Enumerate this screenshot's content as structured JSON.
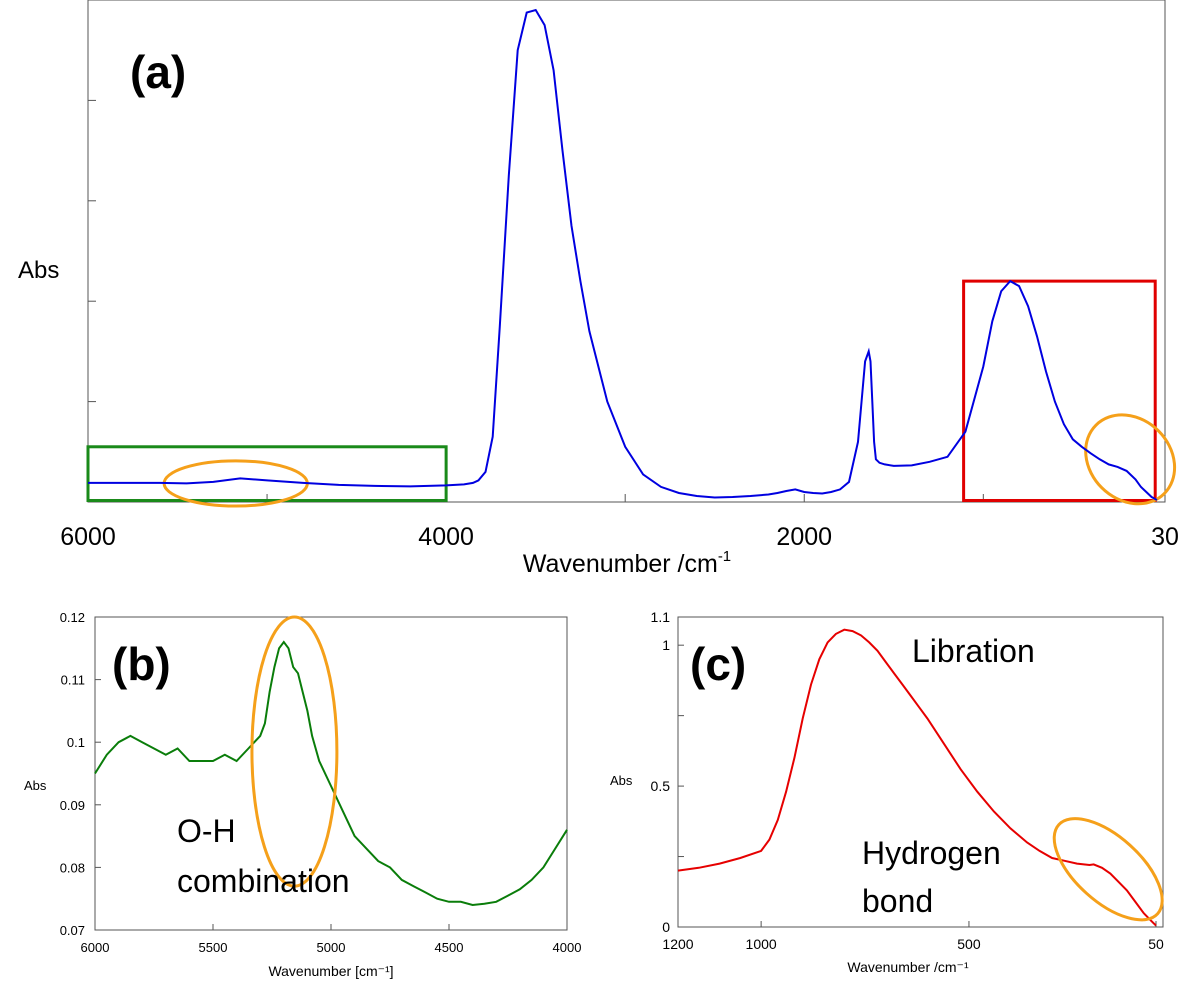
{
  "colors": {
    "spectrum_a": "#0000e0",
    "spectrum_b": "#0a7d0a",
    "spectrum_c": "#e60000",
    "highlight_ellipse": "#f5a01a",
    "box_red": "#e00000",
    "box_green": "#1a8a1a",
    "axis": "#555555"
  },
  "chart_data": [
    {
      "panel": "(a)",
      "type": "line",
      "ylabel": "Abs",
      "xlabel_base": "Wavenumber /cm",
      "xlabel_sup": "-1",
      "x_reversed": true,
      "xlim": [
        6000,
        30
      ],
      "ylim": [
        0,
        1
      ],
      "x_tick_labels": [
        {
          "x": 6000,
          "label": "6000"
        },
        {
          "x": 4000,
          "label": "4000"
        },
        {
          "x": 2000,
          "label": "2000"
        },
        {
          "x": 30,
          "label": "30"
        }
      ],
      "y_tick_values": [
        0.2,
        0.4,
        0.6,
        0.8
      ],
      "series": [
        {
          "x": [
            6000,
            5800,
            5600,
            5450,
            5300,
            5150,
            5000,
            4800,
            4600,
            4400,
            4200,
            4000,
            3900,
            3850,
            3820,
            3780,
            3740,
            3700,
            3650,
            3600,
            3550,
            3500,
            3450,
            3400,
            3350,
            3300,
            3250,
            3200,
            3100,
            3000,
            2900,
            2800,
            2700,
            2600,
            2500,
            2400,
            2300,
            2200,
            2150,
            2100,
            2050,
            2000,
            1950,
            1900,
            1850,
            1800,
            1750,
            1700,
            1660,
            1640,
            1630,
            1620,
            1610,
            1600,
            1580,
            1550,
            1500,
            1400,
            1300,
            1200,
            1100,
            1000,
            950,
            900,
            850,
            800,
            750,
            700,
            650,
            600,
            550,
            500,
            450,
            400,
            350,
            300,
            250,
            200,
            150,
            120,
            90,
            60,
            30
          ],
          "y": [
            0.038,
            0.038,
            0.038,
            0.037,
            0.04,
            0.047,
            0.043,
            0.038,
            0.034,
            0.032,
            0.031,
            0.033,
            0.035,
            0.038,
            0.043,
            0.06,
            0.13,
            0.35,
            0.65,
            0.9,
            0.975,
            0.98,
            0.95,
            0.86,
            0.7,
            0.55,
            0.44,
            0.34,
            0.2,
            0.11,
            0.055,
            0.03,
            0.018,
            0.012,
            0.009,
            0.01,
            0.012,
            0.015,
            0.018,
            0.022,
            0.025,
            0.02,
            0.018,
            0.017,
            0.02,
            0.025,
            0.04,
            0.12,
            0.28,
            0.3,
            0.28,
            0.2,
            0.12,
            0.085,
            0.078,
            0.075,
            0.072,
            0.073,
            0.08,
            0.09,
            0.14,
            0.27,
            0.36,
            0.42,
            0.44,
            0.43,
            0.39,
            0.33,
            0.26,
            0.2,
            0.155,
            0.125,
            0.11,
            0.097,
            0.085,
            0.075,
            0.07,
            0.062,
            0.045,
            0.03,
            0.02,
            0.01,
            0.004
          ]
        }
      ],
      "annotations": [
        {
          "kind": "rect",
          "color": "box_green",
          "x0": 6000,
          "x1": 4000,
          "y0": 0.003,
          "y1": 0.11
        },
        {
          "kind": "rect",
          "color": "box_red",
          "x0": 1110,
          "x1": 40,
          "y0": 0.003,
          "y1": 0.44
        },
        {
          "kind": "ellipse",
          "color": "highlight_ellipse",
          "cx": 5175,
          "cy": 0.037,
          "rx_data": 400,
          "ry_data": 0.045
        },
        {
          "kind": "ellipse",
          "color": "highlight_ellipse",
          "cx": 180,
          "cy": 0.085,
          "rx_data": 270,
          "ry_data": 0.08,
          "rotate": 45
        }
      ]
    },
    {
      "panel": "(b)",
      "type": "line",
      "ylabel": "Abs",
      "xlabel": "Wavenumber [cm⁻¹]",
      "x_reversed": true,
      "xlim": [
        6000,
        4000
      ],
      "ylim": [
        0.07,
        0.12
      ],
      "x_ticks": [
        6000,
        5500,
        5000,
        4500,
        4000
      ],
      "x_tick_labels": [
        "6000",
        "5500",
        "5000",
        "4500",
        "4000"
      ],
      "y_ticks": [
        0.07,
        0.08,
        0.09,
        0.1,
        0.11,
        0.12
      ],
      "y_tick_labels": [
        "0.07",
        "0.08",
        "0.09",
        "0.1",
        "0.11",
        "0.12"
      ],
      "series": [
        {
          "x": [
            6000,
            5950,
            5900,
            5850,
            5800,
            5750,
            5700,
            5650,
            5600,
            5550,
            5500,
            5450,
            5400,
            5350,
            5300,
            5280,
            5260,
            5240,
            5220,
            5200,
            5180,
            5160,
            5140,
            5120,
            5100,
            5080,
            5050,
            5000,
            4950,
            4900,
            4850,
            4800,
            4750,
            4700,
            4650,
            4600,
            4550,
            4500,
            4450,
            4400,
            4350,
            4300,
            4250,
            4200,
            4150,
            4100,
            4050,
            4000
          ],
          "y": [
            0.095,
            0.098,
            0.1,
            0.101,
            0.1,
            0.099,
            0.098,
            0.099,
            0.097,
            0.097,
            0.097,
            0.098,
            0.097,
            0.099,
            0.101,
            0.103,
            0.108,
            0.112,
            0.115,
            0.116,
            0.115,
            0.112,
            0.111,
            0.108,
            0.105,
            0.101,
            0.097,
            0.093,
            0.089,
            0.085,
            0.083,
            0.081,
            0.08,
            0.078,
            0.077,
            0.076,
            0.075,
            0.0745,
            0.0745,
            0.074,
            0.0742,
            0.0745,
            0.0755,
            0.0765,
            0.078,
            0.08,
            0.083,
            0.086
          ]
        }
      ],
      "annotation_text": [
        "O-H",
        "combination"
      ],
      "ellipse": {
        "cx": 5155,
        "cy": 0.0985,
        "rx_data": 180,
        "ry_data": 0.0215
      }
    },
    {
      "panel": "(c)",
      "type": "line",
      "ylabel": "Abs",
      "xlabel": "Wavenumber /cm⁻¹",
      "x_reversed": true,
      "xlim": [
        1200,
        50
      ],
      "ylim": [
        0,
        1.1
      ],
      "x_ticks": [
        1200,
        1000,
        500,
        50
      ],
      "x_tick_labels": [
        "1200",
        "1000",
        "500",
        "50"
      ],
      "y_ticks": [
        0,
        0.5,
        1,
        1.1
      ],
      "y_tick_labels": [
        "0",
        "0.5",
        "1",
        "1.1"
      ],
      "series": [
        {
          "x": [
            1200,
            1150,
            1100,
            1050,
            1000,
            980,
            960,
            940,
            920,
            900,
            880,
            860,
            840,
            820,
            800,
            780,
            760,
            740,
            720,
            700,
            680,
            660,
            640,
            620,
            600,
            560,
            520,
            480,
            440,
            400,
            360,
            330,
            300,
            270,
            240,
            210,
            200,
            180,
            160,
            140,
            120,
            100,
            80,
            60,
            50
          ],
          "y": [
            0.2,
            0.21,
            0.225,
            0.245,
            0.27,
            0.31,
            0.38,
            0.48,
            0.6,
            0.74,
            0.86,
            0.95,
            1.01,
            1.04,
            1.055,
            1.05,
            1.035,
            1.01,
            0.98,
            0.94,
            0.9,
            0.86,
            0.82,
            0.78,
            0.74,
            0.65,
            0.56,
            0.48,
            0.41,
            0.35,
            0.3,
            0.27,
            0.245,
            0.235,
            0.225,
            0.22,
            0.222,
            0.21,
            0.19,
            0.16,
            0.13,
            0.09,
            0.05,
            0.02,
            0.005
          ]
        }
      ],
      "annotation_libration": "Libration",
      "annotation_hbond": [
        "Hydrogen",
        "bond"
      ],
      "ellipse": {
        "cx": 165,
        "cy": 0.205,
        "rx_data": 160,
        "ry_data": 0.115,
        "rotate": 42
      }
    }
  ]
}
